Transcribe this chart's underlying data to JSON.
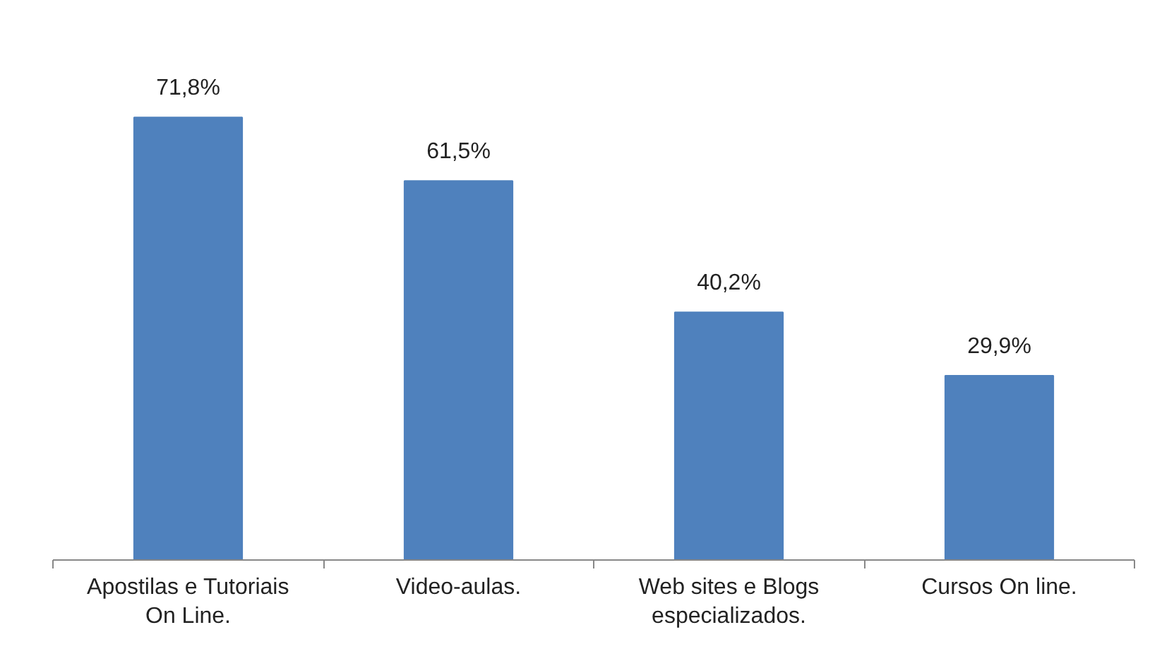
{
  "chart_data": {
    "type": "bar",
    "categories": [
      "Apostilas e Tutoriais On Line.",
      "Video-aulas.",
      "Web sites e Blogs especializados.",
      "Cursos On line."
    ],
    "values": [
      71.8,
      61.5,
      40.2,
      29.9
    ],
    "value_labels": [
      "71,8%",
      "61,5%",
      "40,2%",
      "29,9%"
    ],
    "color": "#4f81bd",
    "tick_labels": "x"
  }
}
